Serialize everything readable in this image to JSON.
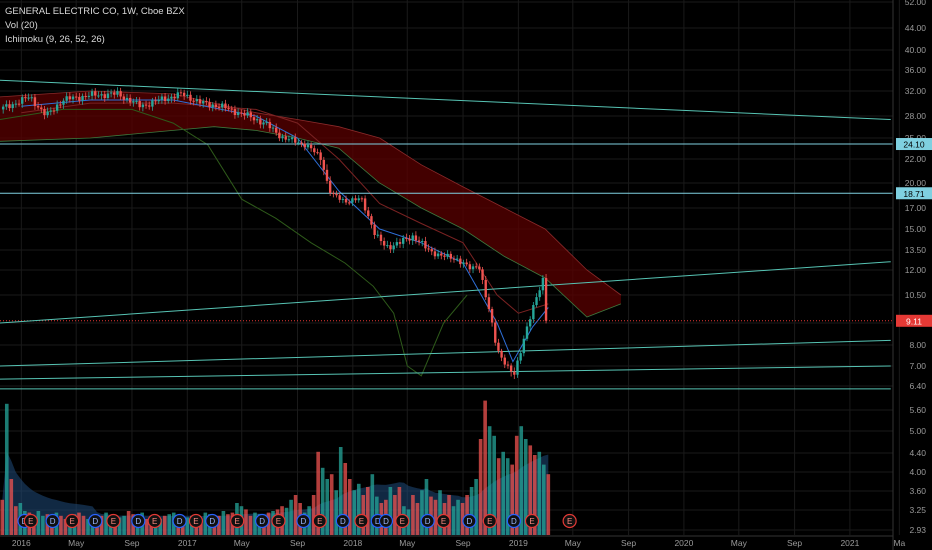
{
  "header": {
    "symbol_line": "GENERAL ELECTRIC CO, 1W, Cboe BZX",
    "vol_line": "Vol (20)",
    "ichimoku_line": "Ichimoku (9, 26, 52, 26)"
  },
  "colors": {
    "background": "#000000",
    "grid": "#1a1a1a",
    "up": "#26a69a",
    "down": "#ef5350",
    "trendline": "#57c4b4",
    "level_line": "#7fd0e0",
    "price_marker": "#e53935",
    "cloud": "#5a0000",
    "conversion_line": "#2e6fd8",
    "base_line": "#7a2222",
    "lagging_line": "#2e5a1a"
  },
  "chart_data": {
    "type": "candlestick",
    "timeframe": "1W",
    "scale": "log",
    "ylim": [
      2.93,
      52.0
    ],
    "price_ticks": [
      "52.00",
      "44.00",
      "40.00",
      "36.00",
      "32.00",
      "28.00",
      "25.00",
      "22.00",
      "20.00",
      "17.00",
      "15.00",
      "13.50",
      "12.00",
      "10.50",
      "9.00",
      "8.00",
      "7.00",
      "6.40",
      "5.60",
      "5.00",
      "4.40",
      "4.00",
      "3.60",
      "3.25",
      "2.93"
    ],
    "time_ticks": [
      "2016",
      "May",
      "Sep",
      "2017",
      "May",
      "Sep",
      "2018",
      "May",
      "Sep",
      "2019",
      "May",
      "Sep",
      "2020",
      "May",
      "Sep",
      "2021",
      "Ma"
    ],
    "price_labels": [
      {
        "value": 24.1,
        "text": "24.10",
        "color": "#7fd0e0"
      },
      {
        "value": 18.71,
        "text": "18.71",
        "color": "#7fd0e0"
      },
      {
        "value": 9.11,
        "text": "9.11",
        "color": "#e53935"
      }
    ],
    "horizontal_levels": [
      24.1,
      18.71
    ],
    "last_price": 9.11,
    "trendlines": [
      {
        "from": [
          "2015-11-15",
          34.0
        ],
        "to": [
          "2021-04-01",
          27.5
        ]
      },
      {
        "from": [
          "2015-11-15",
          9.0
        ],
        "to": [
          "2021-04-01",
          12.6
        ]
      },
      {
        "from": [
          "2015-11-15",
          7.0
        ],
        "to": [
          "2021-04-01",
          8.2
        ]
      },
      {
        "from": [
          "2015-11-15",
          6.6
        ],
        "to": [
          "2021-04-01",
          7.0
        ]
      },
      {
        "from": [
          "2015-11-15",
          6.3
        ],
        "to": [
          "2021-04-01",
          6.3
        ]
      }
    ],
    "price_path": [
      [
        "2015-11-15",
        29.0
      ],
      [
        "2016-01-20",
        31.0
      ],
      [
        "2016-02-25",
        28.0
      ],
      [
        "2016-04-01",
        30.5
      ],
      [
        "2016-06-01",
        31.3
      ],
      [
        "2016-08-01",
        31.5
      ],
      [
        "2016-09-20",
        29.5
      ],
      [
        "2016-11-01",
        30.5
      ],
      [
        "2016-12-20",
        31.5
      ],
      [
        "2017-02-01",
        30.0
      ],
      [
        "2017-03-15",
        29.5
      ],
      [
        "2017-05-15",
        28.0
      ],
      [
        "2017-06-20",
        27.0
      ],
      [
        "2017-08-01",
        25.0
      ],
      [
        "2017-09-20",
        24.0
      ],
      [
        "2017-10-25",
        22.0
      ],
      [
        "2017-11-15",
        18.5
      ],
      [
        "2017-12-15",
        17.8
      ],
      [
        "2018-01-20",
        18.0
      ],
      [
        "2018-02-20",
        14.5
      ],
      [
        "2018-03-15",
        13.7
      ],
      [
        "2018-04-15",
        14.0
      ],
      [
        "2018-05-15",
        14.5
      ],
      [
        "2018-06-15",
        13.5
      ],
      [
        "2018-07-20",
        13.0
      ],
      [
        "2018-08-20",
        12.8
      ],
      [
        "2018-09-20",
        12.0
      ],
      [
        "2018-10-05",
        12.5
      ],
      [
        "2018-10-25",
        10.0
      ],
      [
        "2018-11-15",
        7.8
      ],
      [
        "2018-12-10",
        6.9
      ],
      [
        "2018-12-24",
        6.7
      ],
      [
        "2019-01-15",
        8.5
      ],
      [
        "2019-02-10",
        10.3
      ],
      [
        "2019-02-25",
        11.5
      ],
      [
        "2019-03-08",
        9.11
      ]
    ],
    "cloud_upper": [
      [
        "2015-11-15",
        31.0
      ],
      [
        "2016-06-01",
        32.0
      ],
      [
        "2016-12-01",
        31.5
      ],
      [
        "2017-03-01",
        30.0
      ],
      [
        "2017-06-01",
        28.5
      ],
      [
        "2017-09-01",
        27.5
      ],
      [
        "2017-12-01",
        26.5
      ],
      [
        "2018-03-01",
        25.0
      ],
      [
        "2018-06-01",
        21.5
      ],
      [
        "2018-09-01",
        19.5
      ],
      [
        "2018-12-01",
        17.0
      ],
      [
        "2019-03-01",
        15.0
      ],
      [
        "2019-06-01",
        12.0
      ],
      [
        "2019-08-15",
        10.5
      ]
    ],
    "cloud_lower": [
      [
        "2015-11-15",
        24.5
      ],
      [
        "2016-06-01",
        25.0
      ],
      [
        "2016-12-01",
        26.0
      ],
      [
        "2017-03-01",
        26.5
      ],
      [
        "2017-06-01",
        26.0
      ],
      [
        "2017-09-01",
        25.0
      ],
      [
        "2017-12-01",
        23.5
      ],
      [
        "2018-03-01",
        20.0
      ],
      [
        "2018-06-01",
        17.0
      ],
      [
        "2018-09-01",
        15.0
      ],
      [
        "2018-12-01",
        13.0
      ],
      [
        "2019-03-01",
        11.5
      ],
      [
        "2019-06-01",
        9.3
      ],
      [
        "2019-08-15",
        10.0
      ]
    ],
    "conversion_line": [
      [
        "2016-01-01",
        29.5
      ],
      [
        "2016-06-01",
        30.5
      ],
      [
        "2016-12-01",
        30.5
      ],
      [
        "2017-06-01",
        28.0
      ],
      [
        "2017-09-01",
        25.0
      ],
      [
        "2017-12-01",
        19.0
      ],
      [
        "2018-03-01",
        15.0
      ],
      [
        "2018-06-01",
        14.0
      ],
      [
        "2018-09-01",
        12.5
      ],
      [
        "2018-11-15",
        9.0
      ],
      [
        "2018-12-20",
        7.2
      ],
      [
        "2019-02-01",
        8.8
      ],
      [
        "2019-03-08",
        9.8
      ]
    ],
    "base_line": [
      [
        "2016-01-01",
        28.5
      ],
      [
        "2016-06-01",
        30.0
      ],
      [
        "2016-12-01",
        30.0
      ],
      [
        "2017-06-01",
        29.0
      ],
      [
        "2017-09-01",
        27.0
      ],
      [
        "2017-12-01",
        22.0
      ],
      [
        "2018-03-01",
        17.5
      ],
      [
        "2018-06-01",
        15.5
      ],
      [
        "2018-09-01",
        14.0
      ],
      [
        "2018-11-15",
        10.5
      ],
      [
        "2019-01-01",
        9.5
      ],
      [
        "2019-03-08",
        10.0
      ]
    ],
    "lagging_line": [
      [
        "2015-11-15",
        27.5
      ],
      [
        "2016-04-01",
        29.0
      ],
      [
        "2016-09-01",
        29.0
      ],
      [
        "2016-12-01",
        27.0
      ],
      [
        "2017-02-15",
        24.0
      ],
      [
        "2017-05-01",
        18.0
      ],
      [
        "2017-07-15",
        16.0
      ],
      [
        "2017-10-01",
        14.0
      ],
      [
        "2017-12-15",
        12.5
      ],
      [
        "2018-02-15",
        11.0
      ],
      [
        "2018-04-01",
        9.5
      ],
      [
        "2018-05-01",
        7.0
      ],
      [
        "2018-06-01",
        6.7
      ],
      [
        "2018-07-20",
        9.0
      ],
      [
        "2018-09-10",
        10.5
      ]
    ],
    "volume": [
      0.22,
      0.82,
      0.35,
      0.18,
      0.2,
      0.15,
      0.14,
      0.12,
      0.15,
      0.12,
      0.13,
      0.12,
      0.14,
      0.12,
      0.1,
      0.12,
      0.13,
      0.14,
      0.12,
      0.1,
      0.12,
      0.11,
      0.12,
      0.14,
      0.12,
      0.1,
      0.11,
      0.12,
      0.15,
      0.13,
      0.12,
      0.14,
      0.1,
      0.12,
      0.11,
      0.1,
      0.12,
      0.13,
      0.14,
      0.12,
      0.1,
      0.11,
      0.12,
      0.12,
      0.1,
      0.14,
      0.13,
      0.12,
      0.12,
      0.15,
      0.13,
      0.14,
      0.2,
      0.18,
      0.16,
      0.12,
      0.14,
      0.13,
      0.12,
      0.14,
      0.15,
      0.16,
      0.18,
      0.17,
      0.22,
      0.25,
      0.2,
      0.14,
      0.18,
      0.25,
      0.52,
      0.42,
      0.35,
      0.38,
      0.28,
      0.55,
      0.45,
      0.35,
      0.28,
      0.32,
      0.25,
      0.3,
      0.38,
      0.24,
      0.2,
      0.22,
      0.3,
      0.25,
      0.3,
      0.18,
      0.16,
      0.25,
      0.2,
      0.28,
      0.35,
      0.24,
      0.22,
      0.28,
      0.2,
      0.25,
      0.18,
      0.22,
      0.2,
      0.25,
      0.3,
      0.35,
      0.6,
      0.84,
      0.68,
      0.62,
      0.48,
      0.52,
      0.48,
      0.44,
      0.62,
      0.68,
      0.6,
      0.56,
      0.5,
      0.52,
      0.44,
      0.38
    ],
    "volume_ma_note": "Vol (20)",
    "earnings_markers": [
      {
        "date": "2016-01-08",
        "label": "D",
        "color": "#2962ff"
      },
      {
        "date": "2016-01-22",
        "label": "E",
        "color": "#e53935"
      },
      {
        "date": "2016-03-10",
        "label": "D",
        "color": "#2962ff"
      },
      {
        "date": "2016-04-22",
        "label": "E",
        "color": "#e53935"
      },
      {
        "date": "2016-06-12",
        "label": "D",
        "color": "#2962ff"
      },
      {
        "date": "2016-07-22",
        "label": "E",
        "color": "#e53935"
      },
      {
        "date": "2016-09-15",
        "label": "D",
        "color": "#2962ff"
      },
      {
        "date": "2016-10-21",
        "label": "E",
        "color": "#e53935"
      },
      {
        "date": "2016-12-15",
        "label": "D",
        "color": "#2962ff"
      },
      {
        "date": "2017-01-20",
        "label": "E",
        "color": "#e53935"
      },
      {
        "date": "2017-02-25",
        "label": "D",
        "color": "#2962ff"
      },
      {
        "date": "2017-04-21",
        "label": "E",
        "color": "#e53935"
      },
      {
        "date": "2017-06-15",
        "label": "D",
        "color": "#2962ff"
      },
      {
        "date": "2017-07-21",
        "label": "E",
        "color": "#e53935"
      },
      {
        "date": "2017-09-14",
        "label": "D",
        "color": "#2962ff"
      },
      {
        "date": "2017-10-20",
        "label": "E",
        "color": "#e53935"
      },
      {
        "date": "2017-12-10",
        "label": "D",
        "color": "#2962ff"
      },
      {
        "date": "2018-01-20",
        "label": "E",
        "color": "#e53935"
      },
      {
        "date": "2018-02-25",
        "label": "D",
        "color": "#2962ff"
      },
      {
        "date": "2018-03-15",
        "label": "D",
        "color": "#2962ff"
      },
      {
        "date": "2018-04-20",
        "label": "E",
        "color": "#e53935"
      },
      {
        "date": "2018-06-15",
        "label": "D",
        "color": "#2962ff"
      },
      {
        "date": "2018-07-20",
        "label": "E",
        "color": "#e53935"
      },
      {
        "date": "2018-09-15",
        "label": "D",
        "color": "#2962ff"
      },
      {
        "date": "2018-10-30",
        "label": "E",
        "color": "#e53935"
      },
      {
        "date": "2018-12-22",
        "label": "D",
        "color": "#2962ff"
      },
      {
        "date": "2019-01-31",
        "label": "E",
        "color": "#e53935"
      },
      {
        "date": "2019-04-24",
        "label": "E",
        "color": "#e53935"
      }
    ]
  }
}
